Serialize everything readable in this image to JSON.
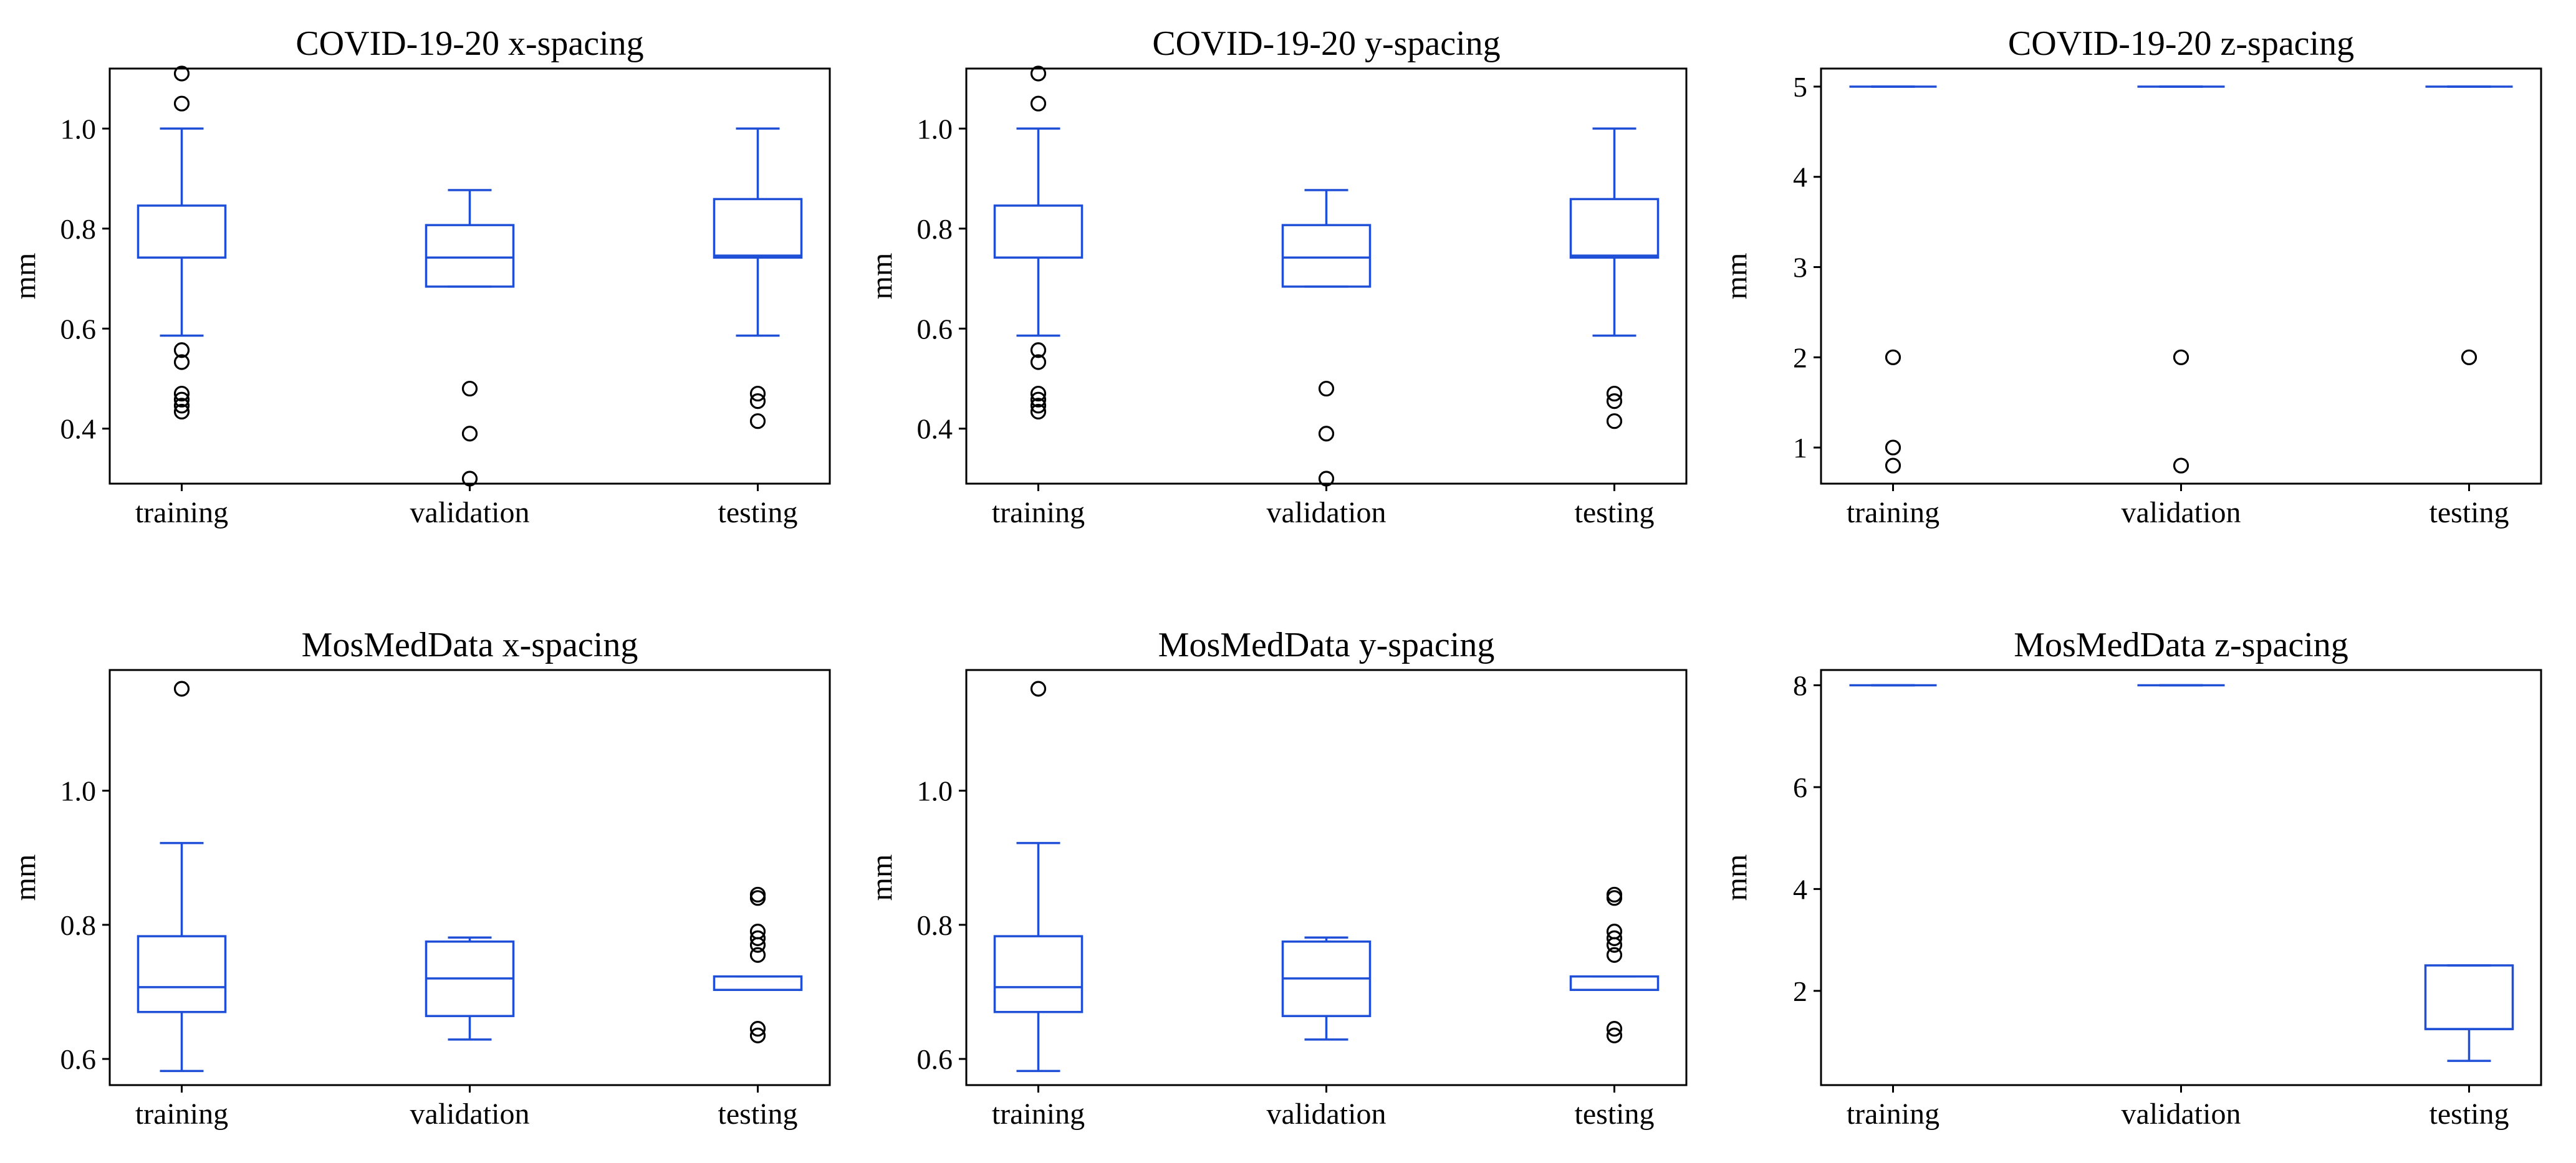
{
  "chart_data": [
    {
      "type": "box",
      "title": "COVID-19-20  x-spacing",
      "ylabel": "mm",
      "categories": [
        "training",
        "validation",
        "testing"
      ],
      "ylim": [
        0.29,
        1.12
      ],
      "yticks": [
        0.4,
        0.6,
        0.8,
        1.0
      ],
      "boxes": [
        {
          "whislo": 0.586,
          "q1": 0.742,
          "med": 0.742,
          "q3": 0.846,
          "whishi": 1.0,
          "fliers": [
            1.11,
            1.05,
            0.557,
            0.533,
            0.47,
            0.458,
            0.446,
            0.434
          ]
        },
        {
          "whislo": 0.684,
          "q1": 0.684,
          "med": 0.742,
          "q3": 0.807,
          "whishi": 0.877,
          "fliers": [
            0.48,
            0.39,
            0.3
          ]
        },
        {
          "whislo": 0.586,
          "q1": 0.742,
          "med": 0.746,
          "q3": 0.859,
          "whishi": 1.0,
          "fliers": [
            0.47,
            0.455,
            0.415
          ]
        }
      ]
    },
    {
      "type": "box",
      "title": "COVID-19-20  y-spacing",
      "ylabel": "mm",
      "categories": [
        "training",
        "validation",
        "testing"
      ],
      "ylim": [
        0.29,
        1.12
      ],
      "yticks": [
        0.4,
        0.6,
        0.8,
        1.0
      ],
      "boxes": [
        {
          "whislo": 0.586,
          "q1": 0.742,
          "med": 0.742,
          "q3": 0.846,
          "whishi": 1.0,
          "fliers": [
            1.11,
            1.05,
            0.557,
            0.533,
            0.47,
            0.458,
            0.446,
            0.434
          ]
        },
        {
          "whislo": 0.684,
          "q1": 0.684,
          "med": 0.742,
          "q3": 0.807,
          "whishi": 0.877,
          "fliers": [
            0.48,
            0.39,
            0.3
          ]
        },
        {
          "whislo": 0.586,
          "q1": 0.742,
          "med": 0.746,
          "q3": 0.859,
          "whishi": 1.0,
          "fliers": [
            0.47,
            0.455,
            0.415
          ]
        }
      ]
    },
    {
      "type": "box",
      "title": "COVID-19-20  z-spacing",
      "ylabel": "mm",
      "categories": [
        "training",
        "validation",
        "testing"
      ],
      "ylim": [
        0.6,
        5.2
      ],
      "yticks": [
        1,
        2,
        3,
        4,
        5
      ],
      "boxes": [
        {
          "whislo": 5.0,
          "q1": 5.0,
          "med": 5.0,
          "q3": 5.0,
          "whishi": 5.0,
          "fliers": [
            2.0,
            1.0,
            0.8
          ]
        },
        {
          "whislo": 5.0,
          "q1": 5.0,
          "med": 5.0,
          "q3": 5.0,
          "whishi": 5.0,
          "fliers": [
            2.0,
            0.8
          ]
        },
        {
          "whislo": 5.0,
          "q1": 5.0,
          "med": 5.0,
          "q3": 5.0,
          "whishi": 5.0,
          "fliers": [
            2.0
          ]
        }
      ]
    },
    {
      "type": "box",
      "title": "MosMedData  x-spacing",
      "ylabel": "mm",
      "categories": [
        "training",
        "validation",
        "testing"
      ],
      "ylim": [
        0.561,
        1.18
      ],
      "yticks": [
        0.6,
        0.8,
        1.0
      ],
      "boxes": [
        {
          "whislo": 0.582,
          "q1": 0.67,
          "med": 0.707,
          "q3": 0.783,
          "whishi": 0.922,
          "fliers": [
            1.152
          ]
        },
        {
          "whislo": 0.629,
          "q1": 0.664,
          "med": 0.72,
          "q3": 0.775,
          "whishi": 0.781,
          "fliers": []
        },
        {
          "whislo": 0.703,
          "q1": 0.703,
          "med": 0.703,
          "q3": 0.723,
          "whishi": 0.723,
          "fliers": [
            0.845,
            0.84,
            0.79,
            0.78,
            0.77,
            0.755,
            0.645,
            0.635
          ]
        }
      ]
    },
    {
      "type": "box",
      "title": "MosMedData  y-spacing",
      "ylabel": "mm",
      "categories": [
        "training",
        "validation",
        "testing"
      ],
      "ylim": [
        0.561,
        1.18
      ],
      "yticks": [
        0.6,
        0.8,
        1.0
      ],
      "boxes": [
        {
          "whislo": 0.582,
          "q1": 0.67,
          "med": 0.707,
          "q3": 0.783,
          "whishi": 0.922,
          "fliers": [
            1.152
          ]
        },
        {
          "whislo": 0.629,
          "q1": 0.664,
          "med": 0.72,
          "q3": 0.775,
          "whishi": 0.781,
          "fliers": []
        },
        {
          "whislo": 0.703,
          "q1": 0.703,
          "med": 0.703,
          "q3": 0.723,
          "whishi": 0.723,
          "fliers": [
            0.845,
            0.84,
            0.79,
            0.78,
            0.77,
            0.755,
            0.645,
            0.635
          ]
        }
      ]
    },
    {
      "type": "box",
      "title": "MosMedData  z-spacing",
      "ylabel": "mm",
      "categories": [
        "training",
        "validation",
        "testing"
      ],
      "ylim": [
        0.15,
        8.3
      ],
      "yticks": [
        2,
        4,
        6,
        8
      ],
      "boxes": [
        {
          "whislo": 8.0,
          "q1": 8.0,
          "med": 8.0,
          "q3": 8.0,
          "whishi": 8.0,
          "fliers": []
        },
        {
          "whislo": 8.0,
          "q1": 8.0,
          "med": 8.0,
          "q3": 8.0,
          "whishi": 8.0,
          "fliers": []
        },
        {
          "whislo": 0.625,
          "q1": 1.25,
          "med": 1.25,
          "q3": 2.5,
          "whishi": 2.5,
          "fliers": []
        }
      ]
    }
  ]
}
